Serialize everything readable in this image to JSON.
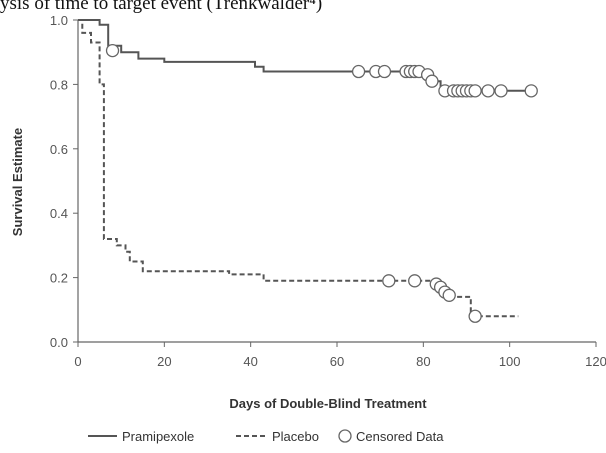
{
  "chart_data": {
    "type": "line",
    "title_partial": "ysis of time to target event (Trenkwalder⁴)",
    "xlabel": "Days of Double-Blind Treatment",
    "ylabel": "Survival Estimate",
    "xlim": [
      0,
      120
    ],
    "ylim": [
      0,
      1.0
    ],
    "x_ticks": [
      "0",
      "20",
      "40",
      "60",
      "80",
      "100",
      "120"
    ],
    "y_ticks": [
      "0.0",
      "0.2",
      "0.4",
      "0.6",
      "0.8",
      "1.0"
    ],
    "grid": false,
    "legend_position": "bottom",
    "series": [
      {
        "name": "Pramipexole",
        "style": "solid",
        "color": "#555555",
        "steps": [
          [
            0,
            1.0
          ],
          [
            5,
            1.0
          ],
          [
            5,
            0.985
          ],
          [
            7,
            0.985
          ],
          [
            7,
            0.92
          ],
          [
            10,
            0.92
          ],
          [
            10,
            0.9
          ],
          [
            14,
            0.9
          ],
          [
            14,
            0.88
          ],
          [
            20,
            0.88
          ],
          [
            20,
            0.87
          ],
          [
            41,
            0.87
          ],
          [
            41,
            0.855
          ],
          [
            43,
            0.855
          ],
          [
            43,
            0.84
          ],
          [
            79,
            0.84
          ],
          [
            79,
            0.83
          ],
          [
            82,
            0.83
          ],
          [
            82,
            0.81
          ],
          [
            84,
            0.81
          ],
          [
            84,
            0.78
          ],
          [
            105,
            0.78
          ]
        ],
        "censored": [
          [
            8,
            0.905
          ],
          [
            65,
            0.84
          ],
          [
            69,
            0.84
          ],
          [
            71,
            0.84
          ],
          [
            76,
            0.84
          ],
          [
            77,
            0.84
          ],
          [
            78,
            0.84
          ],
          [
            79,
            0.84
          ],
          [
            81,
            0.83
          ],
          [
            82,
            0.81
          ],
          [
            85,
            0.78
          ],
          [
            87,
            0.78
          ],
          [
            88,
            0.78
          ],
          [
            89,
            0.78
          ],
          [
            90,
            0.78
          ],
          [
            91,
            0.78
          ],
          [
            92,
            0.78
          ],
          [
            95,
            0.78
          ],
          [
            98,
            0.78
          ],
          [
            105,
            0.78
          ]
        ]
      },
      {
        "name": "Placebo",
        "style": "dashed",
        "color": "#555555",
        "steps": [
          [
            0,
            1.0
          ],
          [
            1,
            1.0
          ],
          [
            1,
            0.96
          ],
          [
            3,
            0.96
          ],
          [
            3,
            0.93
          ],
          [
            5,
            0.93
          ],
          [
            5,
            0.8
          ],
          [
            6,
            0.8
          ],
          [
            6,
            0.32
          ],
          [
            9,
            0.32
          ],
          [
            9,
            0.3
          ],
          [
            11,
            0.3
          ],
          [
            11,
            0.28
          ],
          [
            12,
            0.28
          ],
          [
            12,
            0.25
          ],
          [
            15,
            0.25
          ],
          [
            15,
            0.22
          ],
          [
            35,
            0.22
          ],
          [
            35,
            0.21
          ],
          [
            43,
            0.21
          ],
          [
            43,
            0.19
          ],
          [
            82,
            0.19
          ],
          [
            82,
            0.18
          ],
          [
            84,
            0.18
          ],
          [
            84,
            0.15
          ],
          [
            86,
            0.15
          ],
          [
            86,
            0.14
          ],
          [
            91,
            0.14
          ],
          [
            91,
            0.08
          ],
          [
            102,
            0.08
          ]
        ],
        "censored": [
          [
            72,
            0.19
          ],
          [
            78,
            0.19
          ],
          [
            83,
            0.18
          ],
          [
            84,
            0.17
          ],
          [
            85,
            0.155
          ],
          [
            86,
            0.145
          ],
          [
            92,
            0.08
          ]
        ]
      }
    ],
    "legend": [
      {
        "label": "Pramipexole",
        "kind": "solid-line"
      },
      {
        "label": "Placebo",
        "kind": "dashed-line"
      },
      {
        "label": "Censored Data",
        "kind": "circle"
      }
    ]
  }
}
